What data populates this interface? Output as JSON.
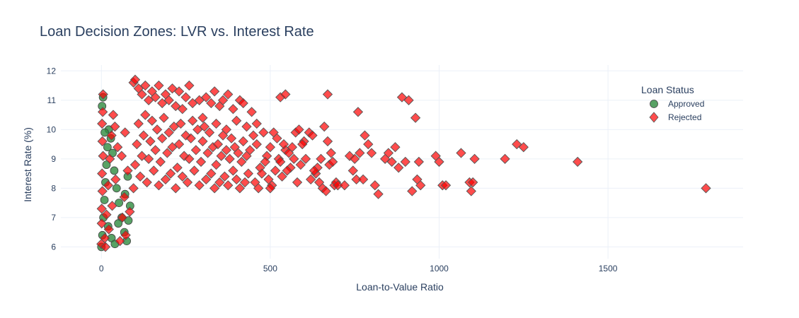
{
  "chart_data": {
    "type": "scatter",
    "title": "Loan Decision Zones: LVR vs. Interest Rate",
    "xlabel": "Loan-to-Value Ratio",
    "ylabel": "Interest Rate (%)",
    "xlim": [
      -120,
      1900
    ],
    "ylim": [
      5.6,
      12.2
    ],
    "xticks": [
      0,
      500,
      1000,
      1500
    ],
    "yticks": [
      6,
      7,
      8,
      9,
      10,
      11,
      12
    ],
    "grid": true,
    "legend": {
      "title": "Loan Status",
      "placement": "top-right"
    },
    "series": [
      {
        "name": "Approved",
        "marker": "circle",
        "color": "#2e8b3e",
        "points": [
          [
            0,
            6.0
          ],
          [
            3,
            6.4
          ],
          [
            6,
            7.0
          ],
          [
            9,
            7.6
          ],
          [
            12,
            8.2
          ],
          [
            15,
            8.8
          ],
          [
            18,
            9.4
          ],
          [
            22,
            10.0
          ],
          [
            28,
            9.7
          ],
          [
            33,
            9.2
          ],
          [
            38,
            8.6
          ],
          [
            45,
            8.0
          ],
          [
            52,
            7.5
          ],
          [
            60,
            7.0
          ],
          [
            68,
            6.5
          ],
          [
            75,
            6.2
          ],
          [
            80,
            6.9
          ],
          [
            85,
            7.4
          ],
          [
            2,
            10.8
          ],
          [
            5,
            11.1
          ],
          [
            10,
            9.9
          ],
          [
            20,
            6.7
          ],
          [
            30,
            6.3
          ],
          [
            40,
            6.1
          ],
          [
            50,
            6.8
          ],
          [
            70,
            7.8
          ],
          [
            78,
            8.4
          ]
        ]
      },
      {
        "name": "Rejected",
        "marker": "diamond",
        "color": "#ff0000",
        "points": [
          [
            0,
            6.1
          ],
          [
            1,
            7.3
          ],
          [
            2,
            8.5
          ],
          [
            3,
            9.6
          ],
          [
            4,
            10.6
          ],
          [
            5,
            11.2
          ],
          [
            1,
            6.8
          ],
          [
            3,
            7.9
          ],
          [
            5,
            9.1
          ],
          [
            2,
            10.2
          ],
          [
            10,
            6.3
          ],
          [
            15,
            7.1
          ],
          [
            20,
            8.1
          ],
          [
            25,
            9.0
          ],
          [
            30,
            9.8
          ],
          [
            35,
            10.5
          ],
          [
            12,
            6.0
          ],
          [
            22,
            6.6
          ],
          [
            32,
            7.4
          ],
          [
            42,
            8.3
          ],
          [
            48,
            9.4
          ],
          [
            55,
            6.2
          ],
          [
            62,
            7.0
          ],
          [
            68,
            7.7
          ],
          [
            72,
            6.4
          ],
          [
            78,
            8.6
          ],
          [
            84,
            7.2
          ],
          [
            40,
            10.1
          ],
          [
            60,
            9.1
          ],
          [
            70,
            9.9
          ],
          [
            95,
            11.6
          ],
          [
            100,
            11.7
          ],
          [
            110,
            11.4
          ],
          [
            120,
            11.2
          ],
          [
            130,
            11.5
          ],
          [
            140,
            11.0
          ],
          [
            150,
            11.3
          ],
          [
            160,
            11.1
          ],
          [
            170,
            11.5
          ],
          [
            180,
            10.9
          ],
          [
            190,
            11.2
          ],
          [
            200,
            11.0
          ],
          [
            210,
            11.4
          ],
          [
            220,
            10.8
          ],
          [
            230,
            11.3
          ],
          [
            240,
            10.7
          ],
          [
            250,
            11.1
          ],
          [
            260,
            11.5
          ],
          [
            270,
            10.9
          ],
          [
            290,
            11.0
          ],
          [
            95,
            8.0
          ],
          [
            100,
            8.8
          ],
          [
            105,
            9.5
          ],
          [
            110,
            10.2
          ],
          [
            115,
            8.4
          ],
          [
            120,
            9.1
          ],
          [
            125,
            9.8
          ],
          [
            130,
            10.5
          ],
          [
            135,
            8.2
          ],
          [
            140,
            9.0
          ],
          [
            145,
            9.6
          ],
          [
            150,
            10.3
          ],
          [
            155,
            8.6
          ],
          [
            160,
            9.3
          ],
          [
            165,
            10.0
          ],
          [
            170,
            8.1
          ],
          [
            175,
            8.9
          ],
          [
            180,
            9.7
          ],
          [
            185,
            10.4
          ],
          [
            190,
            8.3
          ],
          [
            195,
            9.2
          ],
          [
            200,
            9.9
          ],
          [
            205,
            8.5
          ],
          [
            210,
            9.4
          ],
          [
            215,
            10.1
          ],
          [
            220,
            8.0
          ],
          [
            225,
            8.7
          ],
          [
            230,
            9.5
          ],
          [
            235,
            10.2
          ],
          [
            240,
            8.4
          ],
          [
            245,
            9.1
          ],
          [
            250,
            9.8
          ],
          [
            255,
            8.2
          ],
          [
            260,
            9.0
          ],
          [
            265,
            9.7
          ],
          [
            270,
            10.3
          ],
          [
            275,
            8.6
          ],
          [
            280,
            9.3
          ],
          [
            285,
            10.0
          ],
          [
            290,
            8.1
          ],
          [
            295,
            8.9
          ],
          [
            300,
            9.6
          ],
          [
            305,
            10.1
          ],
          [
            310,
            8.3
          ],
          [
            315,
            9.2
          ],
          [
            320,
            9.9
          ],
          [
            325,
            8.5
          ],
          [
            330,
            9.4
          ],
          [
            335,
            8.0
          ],
          [
            340,
            8.8
          ],
          [
            345,
            9.5
          ],
          [
            350,
            8.2
          ],
          [
            355,
            9.1
          ],
          [
            360,
            9.8
          ],
          [
            365,
            8.4
          ],
          [
            370,
            9.3
          ],
          [
            375,
            8.1
          ],
          [
            380,
            9.0
          ],
          [
            385,
            9.7
          ],
          [
            390,
            8.6
          ],
          [
            395,
            9.4
          ],
          [
            400,
            8.3
          ],
          [
            405,
            9.2
          ],
          [
            410,
            8.0
          ],
          [
            415,
            8.9
          ],
          [
            420,
            9.6
          ],
          [
            425,
            8.2
          ],
          [
            430,
            9.1
          ],
          [
            435,
            8.5
          ],
          [
            440,
            9.3
          ],
          [
            310,
            11.1
          ],
          [
            325,
            10.9
          ],
          [
            335,
            11.3
          ],
          [
            350,
            10.8
          ],
          [
            360,
            11.0
          ],
          [
            375,
            11.2
          ],
          [
            390,
            10.7
          ],
          [
            410,
            11.0
          ],
          [
            420,
            10.9
          ],
          [
            445,
            10.6
          ],
          [
            300,
            10.4
          ],
          [
            340,
            10.2
          ],
          [
            370,
            10.0
          ],
          [
            400,
            10.3
          ],
          [
            430,
            10.1
          ],
          [
            460,
            10.2
          ],
          [
            480,
            9.9
          ],
          [
            460,
            9.5
          ],
          [
            470,
            8.7
          ],
          [
            490,
            9.1
          ],
          [
            455,
            8.2
          ],
          [
            465,
            8.0
          ],
          [
            475,
            8.5
          ],
          [
            485,
            8.9
          ],
          [
            495,
            8.3
          ],
          [
            505,
            8.1
          ],
          [
            515,
            8.6
          ],
          [
            525,
            9.0
          ],
          [
            535,
            8.4
          ],
          [
            545,
            9.3
          ],
          [
            450,
            9.8
          ],
          [
            500,
            9.4
          ],
          [
            520,
            9.7
          ],
          [
            540,
            9.5
          ],
          [
            555,
            9.2
          ],
          [
            560,
            8.7
          ],
          [
            570,
            9.0
          ],
          [
            580,
            8.2
          ],
          [
            590,
            8.8
          ],
          [
            600,
            9.6
          ],
          [
            530,
            11.1
          ],
          [
            545,
            11.2
          ],
          [
            500,
            8.0
          ],
          [
            510,
            9.9
          ],
          [
            530,
            8.9
          ],
          [
            550,
            8.6
          ],
          [
            565,
            9.4
          ],
          [
            575,
            9.9
          ],
          [
            585,
            10.0
          ],
          [
            595,
            9.5
          ],
          [
            605,
            9.0
          ],
          [
            615,
            9.9
          ],
          [
            625,
            9.8
          ],
          [
            635,
            8.5
          ],
          [
            640,
            8.7
          ],
          [
            650,
            9.0
          ],
          [
            660,
            10.1
          ],
          [
            670,
            9.6
          ],
          [
            680,
            9.2
          ],
          [
            690,
            8.1
          ],
          [
            620,
            8.3
          ],
          [
            630,
            8.6
          ],
          [
            645,
            8.2
          ],
          [
            655,
            8.0
          ],
          [
            665,
            7.9
          ],
          [
            675,
            8.8
          ],
          [
            685,
            8.9
          ],
          [
            695,
            8.2
          ],
          [
            700,
            8.1
          ],
          [
            670,
            11.2
          ],
          [
            735,
            9.1
          ],
          [
            745,
            8.6
          ],
          [
            750,
            9.0
          ],
          [
            755,
            8.3
          ],
          [
            760,
            10.6
          ],
          [
            765,
            9.2
          ],
          [
            775,
            8.3
          ],
          [
            780,
            9.8
          ],
          [
            790,
            9.5
          ],
          [
            800,
            9.2
          ],
          [
            810,
            8.1
          ],
          [
            820,
            7.8
          ],
          [
            840,
            9.0
          ],
          [
            850,
            9.2
          ],
          [
            860,
            8.9
          ],
          [
            870,
            9.4
          ],
          [
            880,
            8.7
          ],
          [
            890,
            11.1
          ],
          [
            900,
            8.9
          ],
          [
            910,
            11.0
          ],
          [
            920,
            7.9
          ],
          [
            930,
            10.4
          ],
          [
            935,
            8.3
          ],
          [
            940,
            8.9
          ],
          [
            945,
            8.1
          ],
          [
            990,
            9.1
          ],
          [
            1000,
            8.9
          ],
          [
            1010,
            8.1
          ],
          [
            1020,
            8.1
          ],
          [
            1065,
            9.2
          ],
          [
            1090,
            8.2
          ],
          [
            1100,
            8.2
          ],
          [
            1105,
            9.0
          ],
          [
            1195,
            9.0
          ],
          [
            1230,
            9.5
          ],
          [
            1250,
            9.4
          ],
          [
            1410,
            8.9
          ],
          [
            1790,
            8.0
          ],
          [
            1095,
            7.9
          ],
          [
            720,
            8.1
          ]
        ]
      }
    ]
  }
}
